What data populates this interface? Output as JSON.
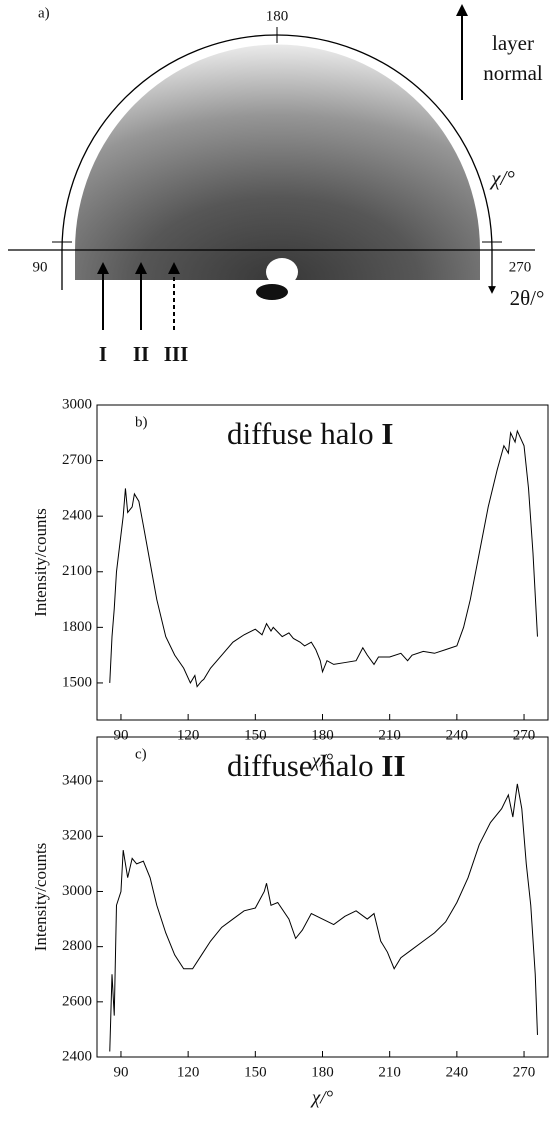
{
  "diagram": {
    "label": "a)",
    "top_tick": "180",
    "left_tick": "90",
    "right_tick": "270",
    "chi_label": "χ/°",
    "two_theta_label": "2θ/°",
    "normal_label": [
      "layer",
      "normal"
    ],
    "arrow_labels": [
      "I",
      "II",
      "III"
    ]
  },
  "chart_data": [
    {
      "type": "line",
      "label": "b)",
      "annotation": [
        "diffuse halo",
        "I"
      ],
      "xlabel": "χ/°",
      "ylabel": "Intensity/counts",
      "color": "#000000",
      "x": [
        85,
        86,
        87,
        88,
        90,
        91,
        92,
        93,
        95,
        96,
        98,
        100,
        103,
        106,
        110,
        114,
        118,
        121,
        123,
        124,
        126,
        127,
        130,
        135,
        140,
        145,
        150,
        153,
        155,
        157,
        158,
        162,
        165,
        167,
        170,
        172,
        175,
        177,
        179,
        180,
        182,
        185,
        190,
        195,
        198,
        200,
        203,
        205,
        210,
        215,
        218,
        220,
        225,
        230,
        235,
        240,
        243,
        246,
        250,
        254,
        258,
        261,
        263,
        264,
        266,
        267,
        270,
        272,
        274,
        276
      ],
      "values": [
        1500,
        1750,
        1900,
        2100,
        2300,
        2400,
        2550,
        2420,
        2450,
        2520,
        2480,
        2350,
        2150,
        1950,
        1750,
        1650,
        1580,
        1500,
        1540,
        1480,
        1510,
        1520,
        1580,
        1650,
        1720,
        1760,
        1790,
        1760,
        1820,
        1780,
        1800,
        1750,
        1770,
        1740,
        1720,
        1700,
        1720,
        1680,
        1620,
        1560,
        1620,
        1600,
        1610,
        1620,
        1690,
        1650,
        1600,
        1640,
        1640,
        1660,
        1620,
        1650,
        1670,
        1660,
        1680,
        1700,
        1800,
        1950,
        2200,
        2450,
        2650,
        2780,
        2740,
        2850,
        2800,
        2860,
        2780,
        2550,
        2200,
        1750
      ],
      "xlim": [
        79.3,
        280.7
      ],
      "ylim": [
        1300,
        3000
      ],
      "xticks": [
        90,
        120,
        150,
        180,
        210,
        240,
        270
      ],
      "yticks": [
        1500,
        1800,
        2100,
        2400,
        2700,
        3000
      ]
    },
    {
      "type": "line",
      "label": "c)",
      "annotation": [
        "diffuse halo",
        "II"
      ],
      "xlabel": "χ/°",
      "ylabel": "Intensity/counts",
      "color": "#000000",
      "x": [
        85,
        86,
        87,
        88,
        90,
        91,
        93,
        95,
        97,
        100,
        103,
        106,
        110,
        114,
        118,
        122,
        126,
        130,
        135,
        140,
        145,
        150,
        154,
        155,
        157,
        160,
        165,
        168,
        171,
        175,
        180,
        185,
        190,
        195,
        200,
        203,
        206,
        209,
        212,
        215,
        220,
        225,
        230,
        235,
        240,
        245,
        250,
        255,
        260,
        263,
        265,
        267,
        269,
        271,
        273,
        275,
        276
      ],
      "values": [
        2420,
        2700,
        2550,
        2950,
        3000,
        3150,
        3050,
        3120,
        3100,
        3110,
        3050,
        2950,
        2850,
        2770,
        2720,
        2720,
        2770,
        2820,
        2870,
        2900,
        2930,
        2940,
        3000,
        3030,
        2950,
        2960,
        2900,
        2830,
        2860,
        2920,
        2900,
        2880,
        2910,
        2930,
        2900,
        2920,
        2820,
        2780,
        2720,
        2760,
        2790,
        2820,
        2850,
        2890,
        2960,
        3050,
        3170,
        3250,
        3300,
        3350,
        3270,
        3390,
        3300,
        3100,
        2950,
        2700,
        2480
      ],
      "xlim": [
        79.3,
        280.7
      ],
      "ylim": [
        2400,
        3560
      ],
      "xticks": [
        90,
        120,
        150,
        180,
        210,
        240,
        270
      ],
      "yticks": [
        2400,
        2600,
        2800,
        3000,
        3200,
        3400
      ]
    }
  ]
}
